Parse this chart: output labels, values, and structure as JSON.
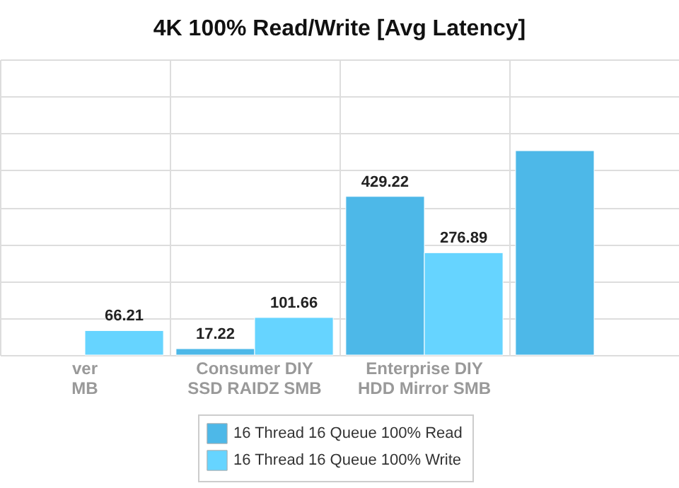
{
  "chart_data": {
    "type": "bar",
    "title": "4K 100% Read/Write [Avg Latency]",
    "categories": [
      "ver\nMB",
      "Consumer DIY\nSSD RAIDZ SMB",
      "Enterprise DIY\nHDD Mirror SMB",
      null
    ],
    "series": [
      {
        "name": "16 Thread 16 Queue 100% Read",
        "color": "#4db8e8",
        "values": [
          null,
          17.22,
          429.22,
          553
        ],
        "value_labels": [
          null,
          "17.22",
          "429.22",
          null
        ]
      },
      {
        "name": "16 Thread 16 Queue 100% Write",
        "color": "#66d4ff",
        "values": [
          66.21,
          101.66,
          276.89,
          null
        ],
        "value_labels": [
          "66.21",
          "101.66",
          "276.89",
          null
        ]
      }
    ],
    "ylim": [
      0,
      800
    ],
    "yticks": [
      {
        "value": 0,
        "label": null
      },
      {
        "value": 100,
        "label": null
      },
      {
        "value": 200,
        "label": null
      },
      {
        "value": 300,
        "label": null
      },
      {
        "value": 400,
        "label": null
      },
      {
        "value": 500,
        "label": null
      },
      {
        "value": 600,
        "label": null
      },
      {
        "value": 700,
        "label": null
      },
      {
        "value": 800,
        "label": null
      }
    ],
    "tick_labels": "x",
    "grid": true,
    "legend": "bottom"
  }
}
